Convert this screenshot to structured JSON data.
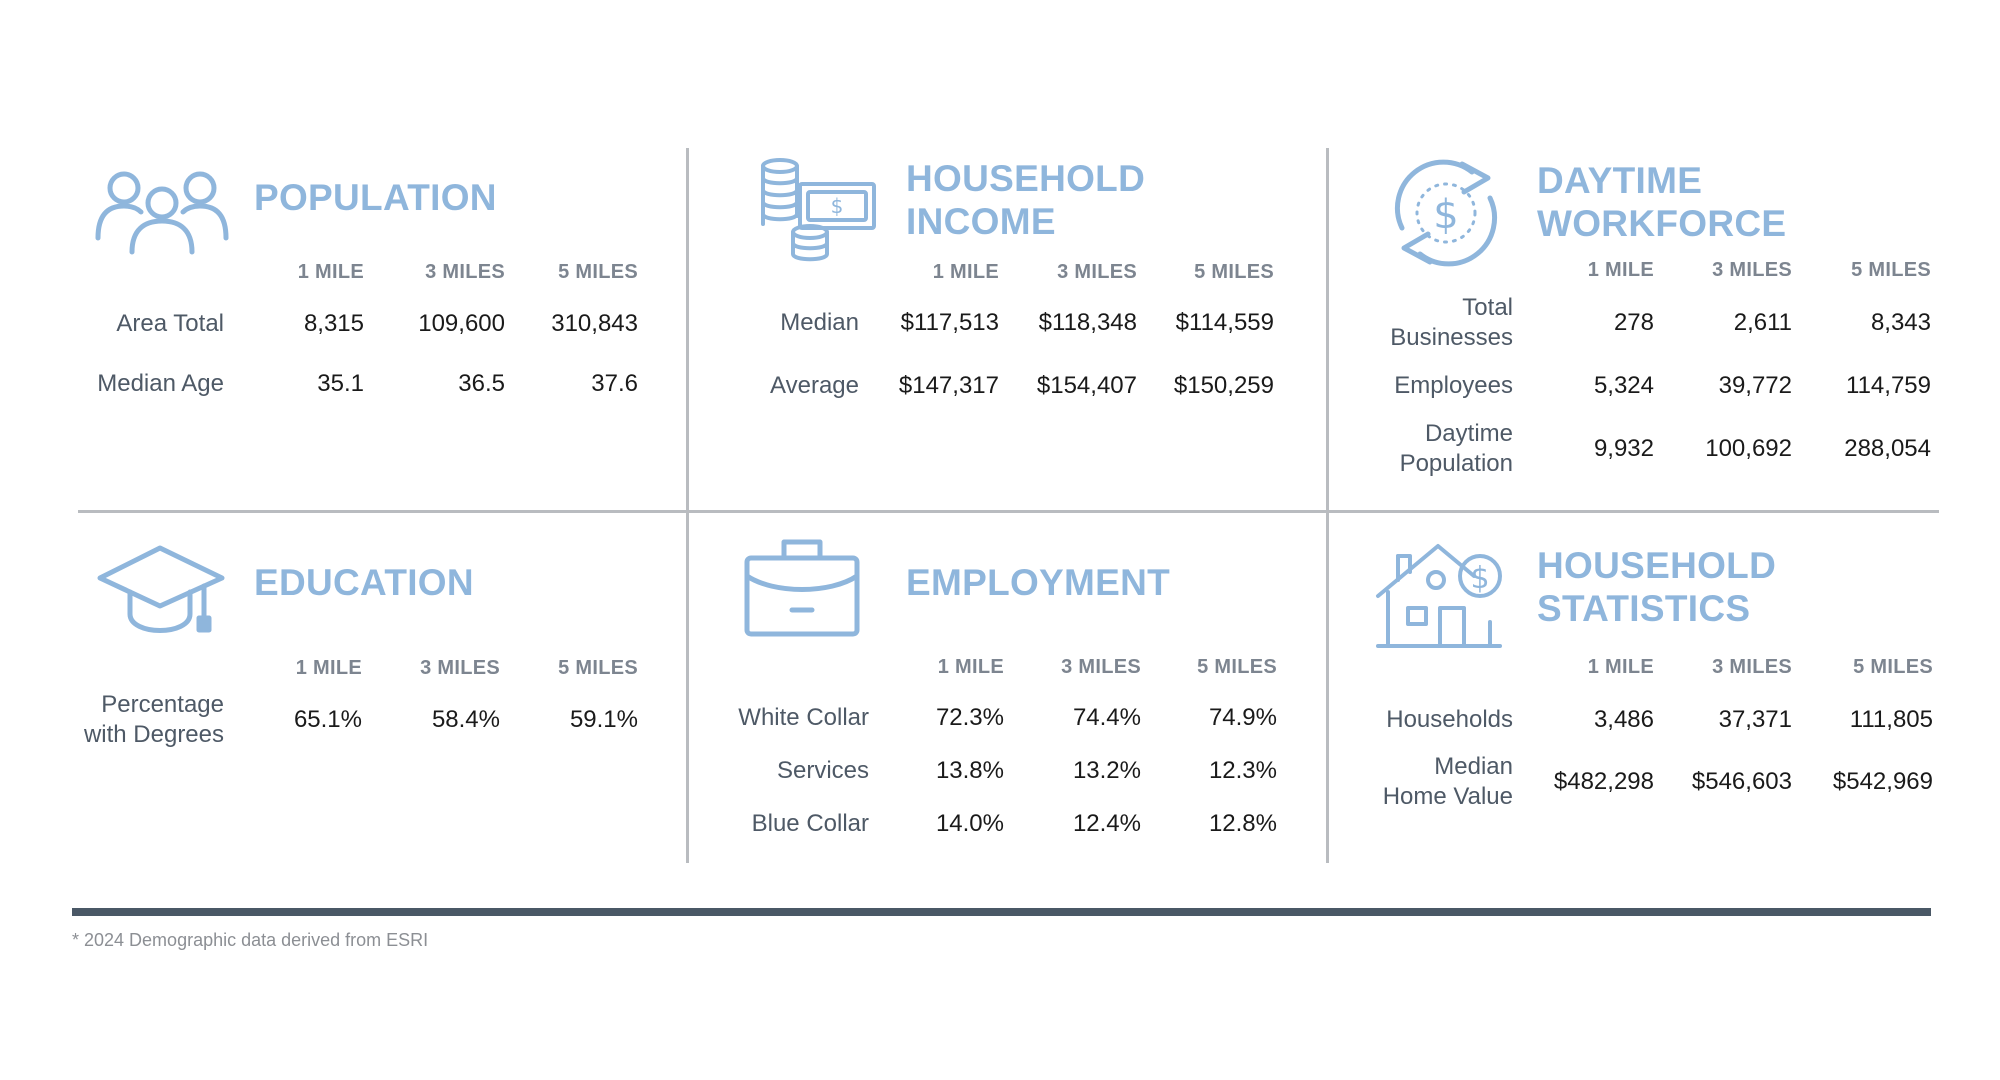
{
  "colors": {
    "accent": "#8fb6dc",
    "label": "#4e5966",
    "header": "#7d8590",
    "rule": "#4a5866"
  },
  "sections": {
    "population": {
      "icon": "people-icon",
      "title": [
        "POPULATION"
      ],
      "columns": [
        "1 MILE",
        "3 MILES",
        "5 MILES"
      ],
      "rows": [
        {
          "label": [
            "Area Total"
          ],
          "values": [
            "8,315",
            "109,600",
            "310,843"
          ]
        },
        {
          "label": [
            "Median Age"
          ],
          "values": [
            "35.1",
            "36.5",
            "37.6"
          ]
        }
      ]
    },
    "income": {
      "icon": "money-stack-icon",
      "title": [
        "HOUSEHOLD",
        "INCOME"
      ],
      "columns": [
        "1 MILE",
        "3 MILES",
        "5 MILES"
      ],
      "rows": [
        {
          "label": [
            "Median"
          ],
          "values": [
            "$117,513",
            "$118,348",
            "$114,559"
          ]
        },
        {
          "label": [
            "Average"
          ],
          "values": [
            "$147,317",
            "$154,407",
            "$150,259"
          ]
        }
      ]
    },
    "workforce": {
      "icon": "dollar-cycle-icon",
      "title": [
        "DAYTIME",
        "WORKFORCE"
      ],
      "columns": [
        "1 MILE",
        "3 MILES",
        "5 MILES"
      ],
      "rows": [
        {
          "label": [
            "Total",
            "Businesses"
          ],
          "values": [
            "278",
            "2,611",
            "8,343"
          ]
        },
        {
          "label": [
            "Employees"
          ],
          "values": [
            "5,324",
            "39,772",
            "114,759"
          ]
        },
        {
          "label": [
            "Daytime",
            "Population"
          ],
          "values": [
            "9,932",
            "100,692",
            "288,054"
          ]
        }
      ]
    },
    "education": {
      "icon": "graduation-cap-icon",
      "title": [
        "EDUCATION"
      ],
      "columns": [
        "1 MILE",
        "3 MILES",
        "5 MILES"
      ],
      "rows": [
        {
          "label": [
            "Percentage",
            "with Degrees"
          ],
          "values": [
            "65.1%",
            "58.4%",
            "59.1%"
          ]
        }
      ]
    },
    "employment": {
      "icon": "briefcase-icon",
      "title": [
        "EMPLOYMENT"
      ],
      "columns": [
        "1 MILE",
        "3 MILES",
        "5 MILES"
      ],
      "rows": [
        {
          "label": [
            "White Collar"
          ],
          "values": [
            "72.3%",
            "74.4%",
            "74.9%"
          ]
        },
        {
          "label": [
            "Services"
          ],
          "values": [
            "13.8%",
            "13.2%",
            "12.3%"
          ]
        },
        {
          "label": [
            "Blue Collar"
          ],
          "values": [
            "14.0%",
            "12.4%",
            "12.8%"
          ]
        }
      ]
    },
    "household": {
      "icon": "house-dollar-icon",
      "title": [
        "HOUSEHOLD",
        "STATISTICS"
      ],
      "columns": [
        "1 MILE",
        "3 MILES",
        "5 MILES"
      ],
      "rows": [
        {
          "label": [
            "Households"
          ],
          "values": [
            "3,486",
            "37,371",
            "111,805"
          ]
        },
        {
          "label": [
            "Median",
            "Home Value"
          ],
          "values": [
            "$482,298",
            "$546,603",
            "$542,969"
          ]
        }
      ]
    }
  },
  "footnote": "* 2024 Demographic data derived from ESRI"
}
